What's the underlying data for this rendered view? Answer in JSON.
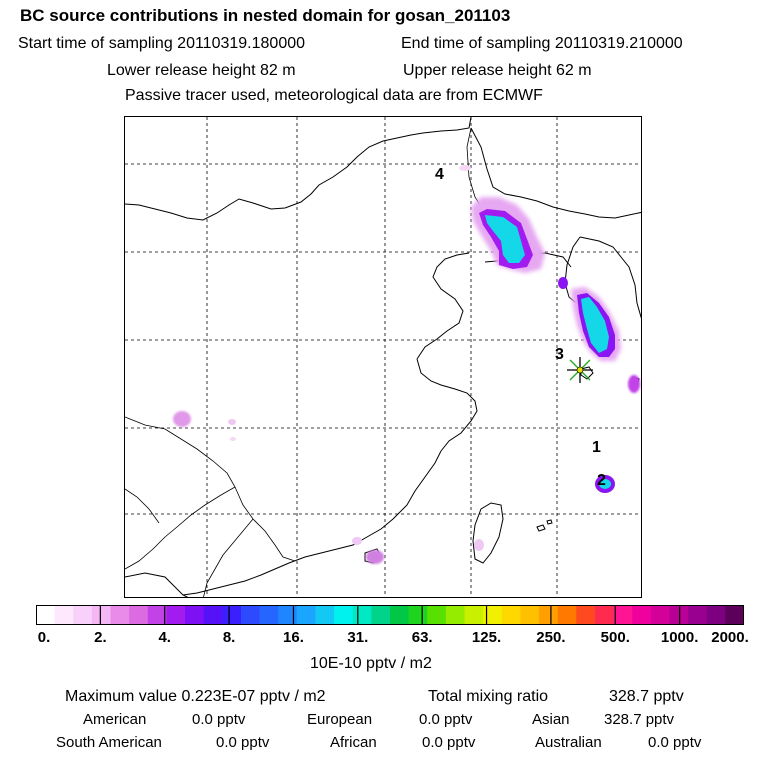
{
  "header": {
    "title": "BC  source contributions in nested domain for gosan_201103",
    "start_label": "Start time of sampling 20110319.180000",
    "end_label": "End time of sampling 20110319.210000",
    "lower_label": "Lower release height   82 m",
    "upper_label": "Upper release height   62 m",
    "tracer_line": "Passive tracer used, meteorological data are from ECMWF"
  },
  "chart_data": {
    "type": "heatmap",
    "title": "BC  source contributions in nested domain for gosan_201103",
    "colorbar": {
      "ticks": [
        "0.",
        "2.",
        "4.",
        "8.",
        "16.",
        "31.",
        "63.",
        "125.",
        "250.",
        "500.",
        "1000.",
        "2000."
      ],
      "units": "10E-10 pptv / m2",
      "colors": [
        "#ffffff",
        "#fde8fd",
        "#f9d0f9",
        "#f4b6f4",
        "#e98ce9",
        "#dc6ae0",
        "#c242e8",
        "#a21cf0",
        "#7d10f5",
        "#5512f8",
        "#3b20ff",
        "#2d4aff",
        "#2466ff",
        "#1f86ff",
        "#1aa6ff",
        "#14c8f4",
        "#00f2ee",
        "#00e8c4",
        "#00d48a",
        "#00c846",
        "#1fd41f",
        "#58e000",
        "#96ec00",
        "#c8f000",
        "#f0f000",
        "#ffd800",
        "#ffc000",
        "#ffa000",
        "#ff7800",
        "#ff4a20",
        "#ff2a50",
        "#ff1493",
        "#f0009c",
        "#d4009a",
        "#b80096",
        "#9a0090",
        "#7d0080",
        "#5c005c"
      ]
    },
    "site_labels": [
      "4",
      "3",
      "1",
      "2"
    ],
    "receptor": "gosan"
  },
  "footer": {
    "max_label": "Maximum value  0.223E-07 pptv / m2",
    "total_label": "Total mixing ratio",
    "total_value": "328.7 pptv",
    "american_label": "American",
    "american_value": "0.0 pptv",
    "european_label": "European",
    "european_value": "0.0 pptv",
    "asian_label": "Asian",
    "asian_value": "328.7 pptv",
    "south_american_label": "South American",
    "south_american_value": "0.0 pptv",
    "african_label": "African",
    "african_value": "0.0 pptv",
    "australian_label": "Australian",
    "australian_value": "0.0 pptv"
  }
}
